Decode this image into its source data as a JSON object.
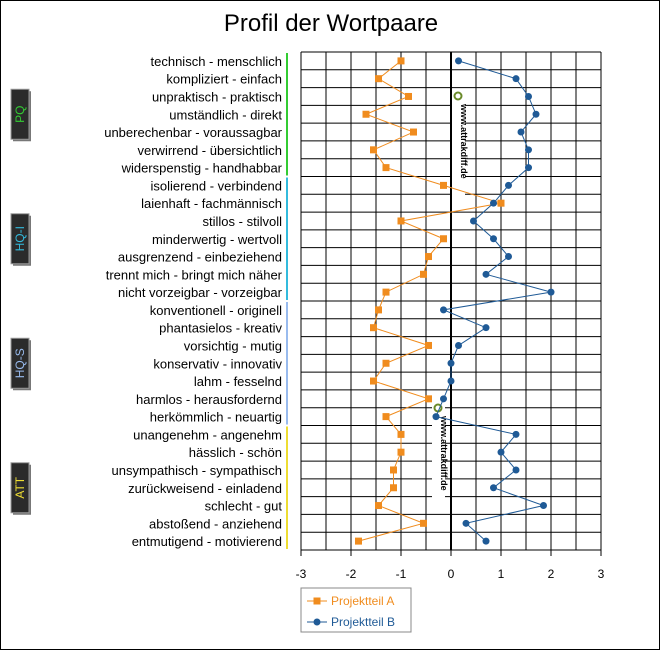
{
  "chart_data": {
    "type": "line",
    "title": "Profil der Wortpaare",
    "orientation": "horizontal-profile",
    "xlim": [
      -3,
      3
    ],
    "xticks": [
      "-3",
      "-2",
      "-1",
      "0",
      "1",
      "2",
      "3"
    ],
    "grid": true,
    "legend_position": "bottom",
    "watermark": "www.attrakdiff.de",
    "categories": [
      "technisch - menschlich",
      "kompliziert - einfach",
      "unpraktisch - praktisch",
      "umständlich - direkt",
      "unberechenbar - voraussagbar",
      "verwirrend - übersichtlich",
      "widerspenstig - handhabbar",
      "isolierend - verbindend",
      "laienhaft - fachmännisch",
      "stillos - stilvoll",
      "minderwertig - wertvoll",
      "ausgrenzend - einbeziehend",
      "trennt mich - bringt mich näher",
      "nicht vorzeigbar - vorzeigbar",
      "konventionell - originell",
      "phantasielos - kreativ",
      "vorsichtig - mutig",
      "konservativ - innovativ",
      "lahm - fesselnd",
      "harmlos - herausfordernd",
      "herkömmlich - neuartig",
      "unangenehm - angenehm",
      "hässlich - schön",
      "unsympathisch - sympathisch",
      "zurückweisend - einladend",
      "schlecht - gut",
      "abstoßend - anziehend",
      "entmutigend - motivierend"
    ],
    "series": [
      {
        "name": "Projektteil A",
        "color": "#f08c1e",
        "marker": "square",
        "values": [
          -1.0,
          -1.45,
          -0.85,
          -1.7,
          -0.75,
          -1.55,
          -1.3,
          -0.15,
          1.0,
          -1.0,
          -0.15,
          -0.45,
          -0.55,
          -1.3,
          -1.45,
          -1.55,
          -0.45,
          -1.3,
          -1.55,
          -0.45,
          -1.3,
          -1.0,
          -1.0,
          -1.15,
          -1.15,
          -1.45,
          -0.55,
          -1.85
        ]
      },
      {
        "name": "Projektteil B",
        "color": "#1f5a96",
        "marker": "circle",
        "values": [
          0.15,
          1.3,
          1.55,
          1.7,
          1.4,
          1.55,
          1.55,
          1.15,
          0.85,
          0.45,
          0.85,
          1.15,
          0.7,
          2.0,
          -0.15,
          0.7,
          0.15,
          0.0,
          0.0,
          -0.15,
          -0.3,
          1.3,
          1.0,
          1.3,
          0.85,
          1.85,
          0.3,
          0.7
        ]
      }
    ],
    "groups": [
      {
        "label": "PQ",
        "color": "#33cc33",
        "start": 0,
        "end": 6
      },
      {
        "label": "HQ-I",
        "color": "#33bbdd",
        "start": 7,
        "end": 13
      },
      {
        "label": "HQ-S",
        "color": "#99bbee",
        "start": 14,
        "end": 20
      },
      {
        "label": "ATT",
        "color": "#eedd33",
        "start": 21,
        "end": 27
      }
    ]
  }
}
